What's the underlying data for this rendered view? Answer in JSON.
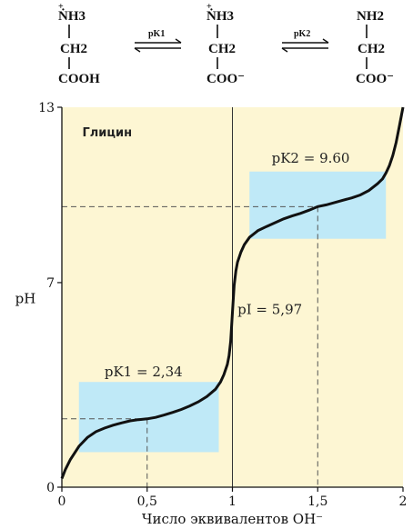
{
  "chem": {
    "species": [
      {
        "top": "ṄH3",
        "mid": "CH2",
        "bottom": "COOH"
      },
      {
        "top": "ṄH3",
        "mid": "CH2",
        "bottom": "COO⁻"
      },
      {
        "top": "NH2",
        "mid": "CH2",
        "bottom": "COO⁻"
      }
    ],
    "arrows": [
      {
        "label": "pK1"
      },
      {
        "label": "pK2"
      }
    ]
  },
  "chart_data": {
    "type": "line",
    "title": "Глицин",
    "xlabel": "Число эквивалентов OH⁻",
    "ylabel": "pH",
    "xlim": [
      0,
      2
    ],
    "ylim": [
      0,
      13
    ],
    "x_ticks": [
      "0",
      "0,5",
      "1",
      "1,5",
      "2"
    ],
    "y_ticks": [
      "0",
      "7",
      "13"
    ],
    "series": [
      {
        "x": [
          0.0,
          0.02,
          0.05,
          0.1,
          0.15,
          0.2,
          0.25,
          0.3,
          0.35,
          0.4,
          0.45,
          0.5,
          0.55,
          0.6,
          0.65,
          0.7,
          0.75,
          0.8,
          0.85,
          0.9,
          0.93,
          0.95,
          0.97,
          0.98,
          0.99,
          1.0,
          1.01,
          1.02,
          1.03,
          1.05,
          1.07,
          1.1,
          1.15,
          1.2,
          1.25,
          1.3,
          1.35,
          1.4,
          1.45,
          1.5,
          1.55,
          1.6,
          1.65,
          1.7,
          1.75,
          1.8,
          1.85,
          1.88,
          1.9,
          1.92,
          1.94,
          1.96,
          1.98,
          2.0
        ],
        "y": [
          0.3,
          0.6,
          0.95,
          1.4,
          1.7,
          1.9,
          2.02,
          2.12,
          2.2,
          2.27,
          2.31,
          2.34,
          2.39,
          2.47,
          2.56,
          2.66,
          2.78,
          2.92,
          3.1,
          3.35,
          3.6,
          3.85,
          4.2,
          4.5,
          5.0,
          5.97,
          6.9,
          7.4,
          7.7,
          8.05,
          8.3,
          8.55,
          8.78,
          8.92,
          9.05,
          9.18,
          9.28,
          9.37,
          9.48,
          9.6,
          9.66,
          9.74,
          9.82,
          9.9,
          10.0,
          10.15,
          10.38,
          10.55,
          10.75,
          11.0,
          11.35,
          11.8,
          12.4,
          13.0
        ]
      }
    ],
    "annotations": [
      {
        "label": "pK1 = 2,34",
        "x": 0.5,
        "y": 2.34,
        "box_x": [
          0.1,
          0.92
        ],
        "box_y": [
          1.2,
          3.6
        ]
      },
      {
        "label": "pK2 = 9.60",
        "x": 1.5,
        "y": 9.6,
        "box_x": [
          1.1,
          1.9
        ],
        "box_y": [
          8.5,
          10.8
        ]
      },
      {
        "label": "pI = 5,97",
        "x": 1.0,
        "y": 5.97
      }
    ],
    "box_color": "#bfe9f7",
    "plot_bg": "#fdf6d3",
    "curve_color": "#111111",
    "grid": false
  }
}
